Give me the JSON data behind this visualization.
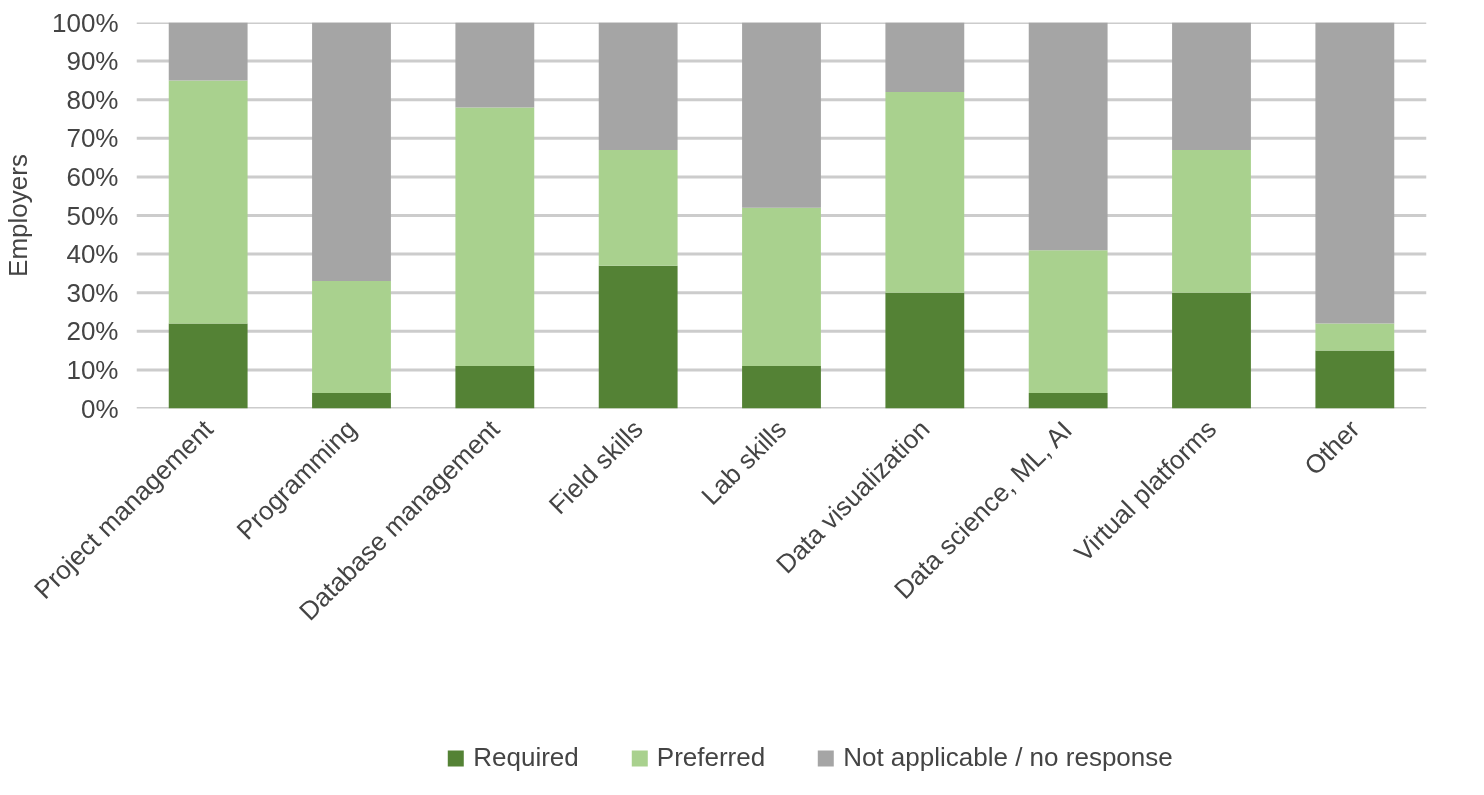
{
  "chart_data": {
    "type": "bar",
    "stacked": true,
    "ylabel": "Employers",
    "categories": [
      "Project management",
      "Programming",
      "Database management",
      "Field skills",
      "Lab skills",
      "Data visualization",
      "Data science, ML, AI",
      "Virtual platforms",
      "Other"
    ],
    "series": [
      {
        "name": "Required",
        "color": "#548235",
        "values": [
          22,
          4,
          11,
          37,
          11,
          30,
          4,
          30,
          15
        ]
      },
      {
        "name": "Preferred",
        "color": "#a9d18e",
        "values": [
          63,
          29,
          67,
          30,
          41,
          52,
          37,
          37,
          7
        ]
      },
      {
        "name": "Not applicable / no response",
        "color": "#a5a5a5",
        "values": [
          15,
          67,
          22,
          33,
          48,
          18,
          59,
          33,
          78
        ]
      }
    ],
    "ylim": [
      0,
      100
    ],
    "yticks": [
      {
        "value": 0,
        "label": "0%"
      },
      {
        "value": 10,
        "label": "10%"
      },
      {
        "value": 20,
        "label": "20%"
      },
      {
        "value": 30,
        "label": "30%"
      },
      {
        "value": 40,
        "label": "40%"
      },
      {
        "value": 50,
        "label": "50%"
      },
      {
        "value": 60,
        "label": "60%"
      },
      {
        "value": 70,
        "label": "70%"
      },
      {
        "value": 80,
        "label": "80%"
      },
      {
        "value": 90,
        "label": "90%"
      },
      {
        "value": 100,
        "label": "100%"
      }
    ],
    "grid": "y",
    "legend": "bottom"
  }
}
